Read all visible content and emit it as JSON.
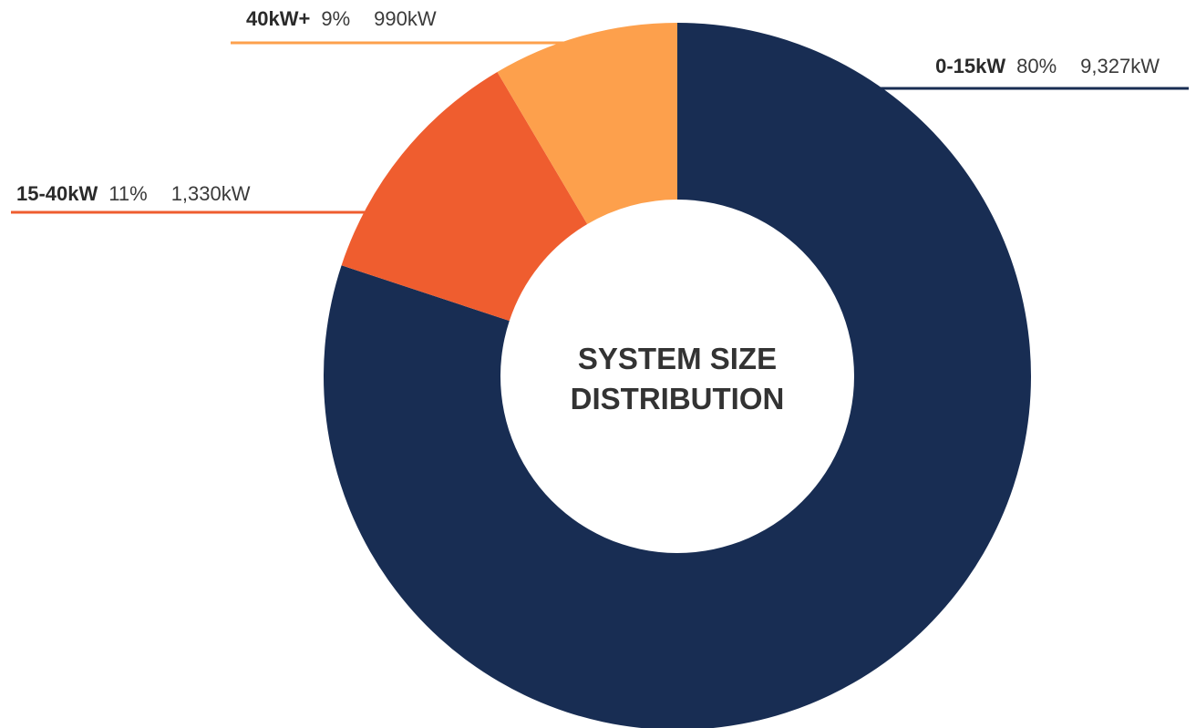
{
  "chart_data": {
    "type": "pie",
    "title": "SYSTEM SIZE DISTRIBUTION",
    "title_lines": [
      "SYSTEM SIZE",
      "DISTRIBUTION"
    ],
    "donut": true,
    "slices": [
      {
        "label": "0-15kW",
        "percent": "80%",
        "value_text": "9,327kW",
        "value": 9327,
        "color": "#182d53"
      },
      {
        "label": "15-40kW",
        "percent": "11%",
        "value_text": "1,330kW",
        "value": 1330,
        "color": "#ef5d2f"
      },
      {
        "label": "40kW+",
        "percent": "9%",
        "value_text": "990kW",
        "value": 990,
        "color": "#fda04c"
      }
    ]
  }
}
